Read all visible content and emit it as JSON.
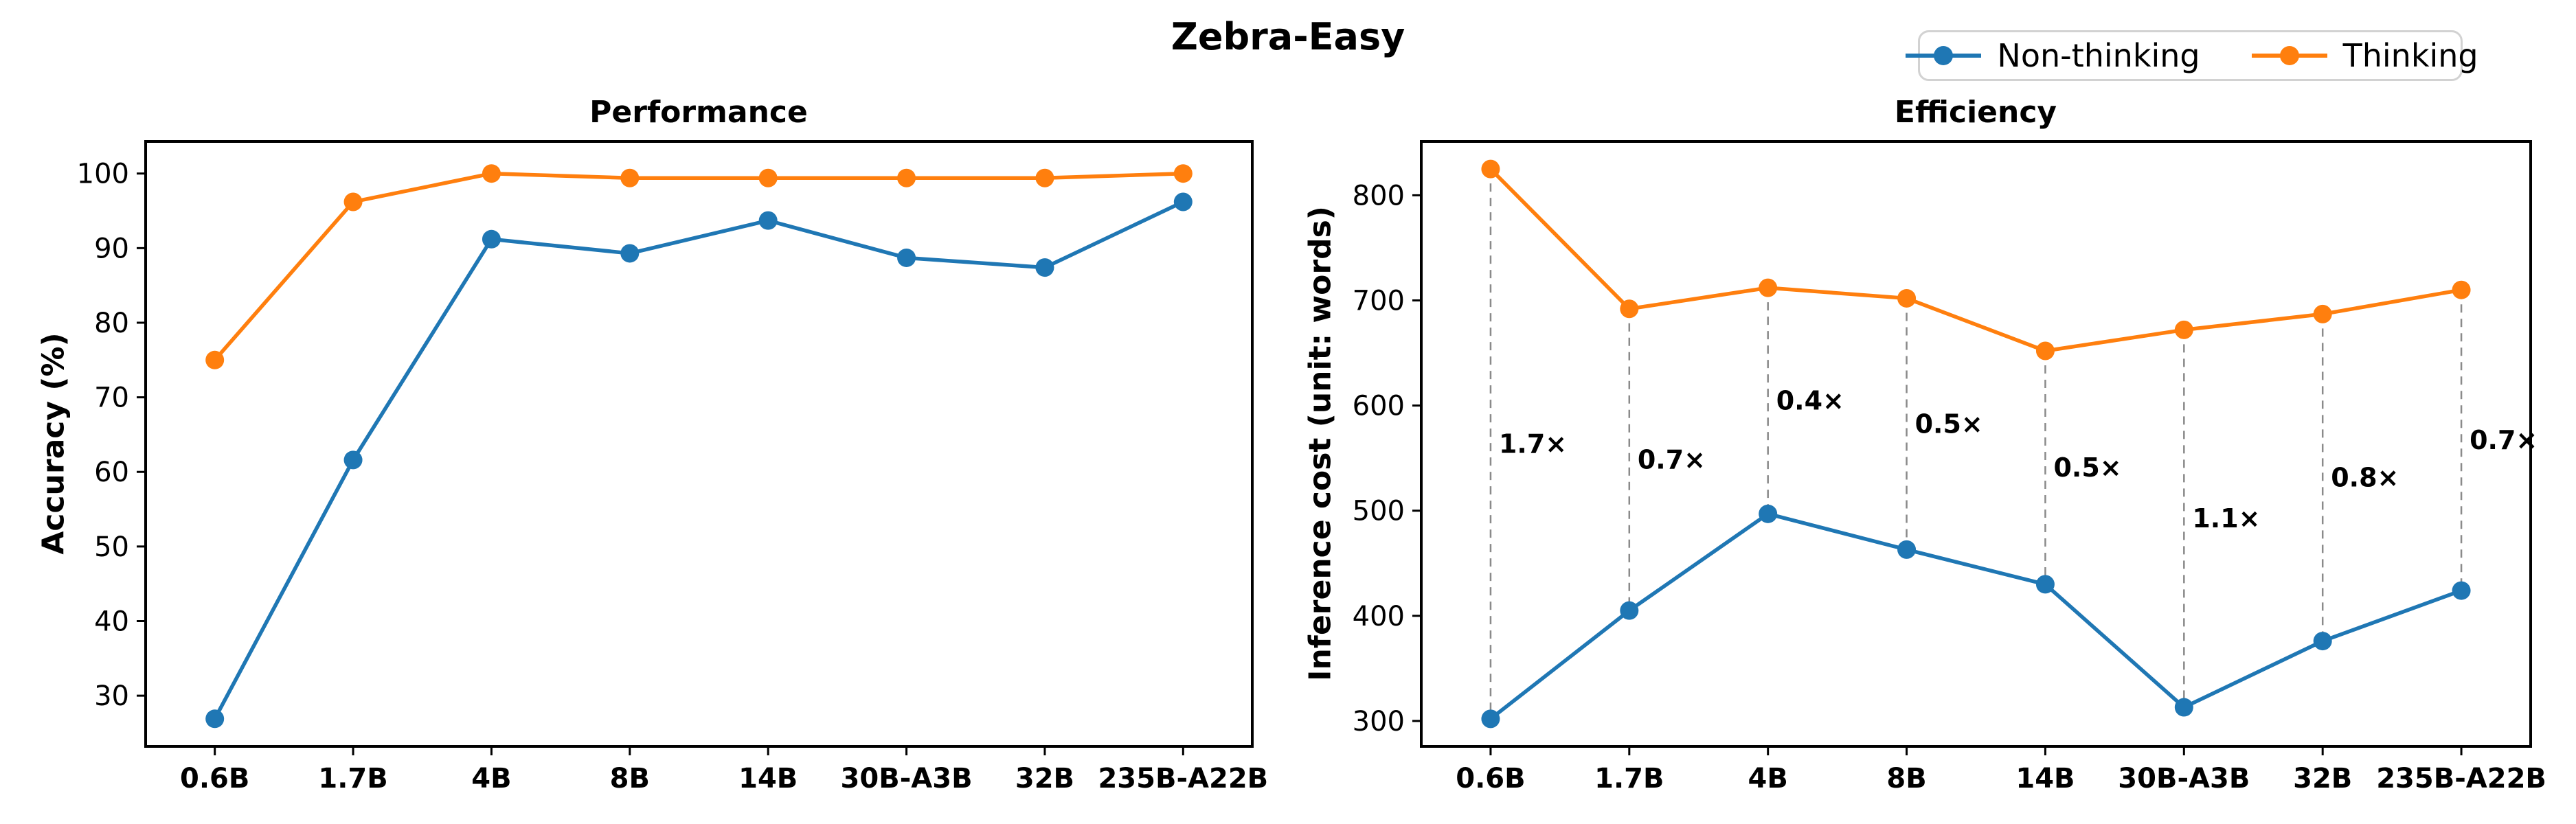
{
  "figure": {
    "suptitle": "Zebra-Easy"
  },
  "legend": {
    "items": [
      {
        "label": "Non-thinking",
        "color": "#1f77b4"
      },
      {
        "label": "Thinking",
        "color": "#ff7f0e"
      }
    ],
    "position": "upper right"
  },
  "chart_data": [
    {
      "type": "line",
      "title": "Performance",
      "ylabel": "Accuracy (%)",
      "categories": [
        "0.6B",
        "1.7B",
        "4B",
        "8B",
        "14B",
        "30B-A3B",
        "32B",
        "235B-A22B"
      ],
      "series": [
        {
          "name": "Non-thinking",
          "color": "#1f77b4",
          "values": [
            26.9,
            61.6,
            91.2,
            89.3,
            93.7,
            88.7,
            87.4,
            96.2
          ]
        },
        {
          "name": "Thinking",
          "color": "#ff7f0e",
          "values": [
            75.0,
            96.2,
            100.0,
            99.4,
            99.4,
            99.4,
            99.4,
            100.0
          ]
        }
      ],
      "ylim": [
        23.2,
        104.3
      ],
      "yticks": [
        30,
        40,
        50,
        60,
        70,
        80,
        90,
        100
      ],
      "grid": false,
      "marker": "o"
    },
    {
      "type": "line",
      "title": "Efficiency",
      "ylabel": "Inference cost (unit: words)",
      "categories": [
        "0.6B",
        "1.7B",
        "4B",
        "8B",
        "14B",
        "30B-A3B",
        "32B",
        "235B-A22B"
      ],
      "series": [
        {
          "name": "Non-thinking",
          "color": "#1f77b4",
          "values": [
            302,
            405,
            497,
            463,
            430,
            313,
            376,
            424
          ]
        },
        {
          "name": "Thinking",
          "color": "#ff7f0e",
          "values": [
            825,
            692,
            712,
            702,
            652,
            672,
            687,
            710
          ]
        }
      ],
      "ylim": [
        275.8,
        851.2
      ],
      "yticks": [
        300,
        400,
        500,
        600,
        700,
        800
      ],
      "grid": false,
      "marker": "o",
      "pair_labels": [
        "1.7×",
        "0.7×",
        "0.4×",
        "0.5×",
        "0.5×",
        "1.1×",
        "0.8×",
        "0.7×"
      ],
      "connector_style": "dashed",
      "connector_color": "#8a8a8a"
    }
  ]
}
